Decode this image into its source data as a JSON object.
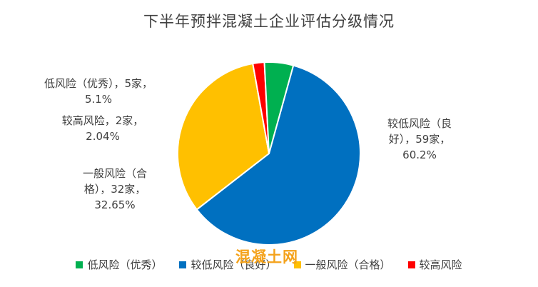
{
  "chart_data": {
    "type": "pie",
    "title": "下半年预拌混凝土企业评估分级情况",
    "slices": [
      {
        "name": "较低风险（良好）",
        "value": 60.2,
        "color": "#0070C0",
        "label_text": "较低风险（良\n好），59家，\n60.2%"
      },
      {
        "name": "一般风险（合格）",
        "value": 32.65,
        "color": "#FFC000",
        "label_text": "一般风险（合\n格），32家，\n32.65%"
      },
      {
        "name": "较高风险",
        "value": 2.04,
        "color": "#FF0000",
        "label_text": "较高风险，2家，\n2.04%"
      },
      {
        "name": "低风险（优秀）",
        "value": 5.1,
        "color": "#00B050",
        "label_text": "低风险（优秀），5家，\n5.1%"
      }
    ],
    "legend": [
      "低风险（优秀）",
      "较低风险（良好）",
      "一般风险（合格）",
      "较高风险"
    ],
    "legend_colors": [
      "#00B050",
      "#0070C0",
      "#FFC000",
      "#FF0000"
    ],
    "legend_placement": "bottom"
  },
  "watermark": "混凝土网"
}
